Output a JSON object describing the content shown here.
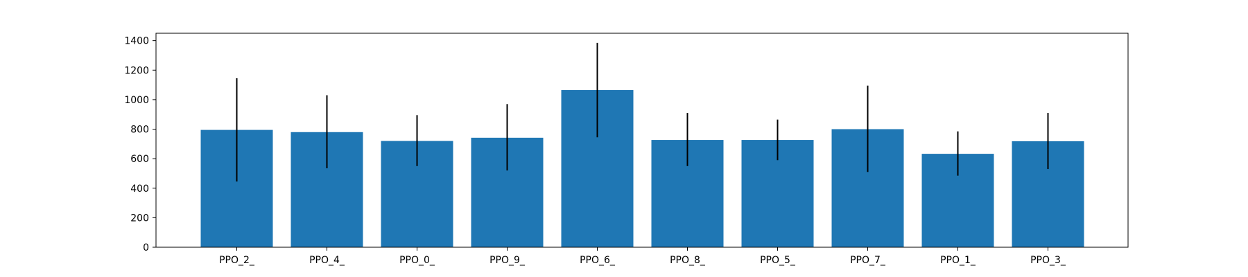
{
  "chart_data": {
    "type": "bar",
    "categories": [
      "PPO_2_",
      "PPO_4_",
      "PPO_0_",
      "PPO_9_",
      "PPO_6_",
      "PPO_8_",
      "PPO_5_",
      "PPO_7_",
      "PPO_1_",
      "PPO_3_"
    ],
    "values": [
      795,
      780,
      720,
      742,
      1065,
      727,
      727,
      800,
      633,
      718
    ],
    "error_low": [
      445,
      535,
      550,
      520,
      745,
      550,
      590,
      510,
      485,
      530
    ],
    "error_high": [
      1145,
      1030,
      895,
      970,
      1385,
      910,
      865,
      1095,
      785,
      910
    ],
    "ylim": [
      0,
      1450
    ],
    "yticks": [
      0,
      200,
      400,
      600,
      800,
      1000,
      1200,
      1400
    ],
    "bar_color": "#1f77b4",
    "error_color": "#000000",
    "grid": false,
    "title": "",
    "xlabel": "",
    "ylabel": ""
  }
}
